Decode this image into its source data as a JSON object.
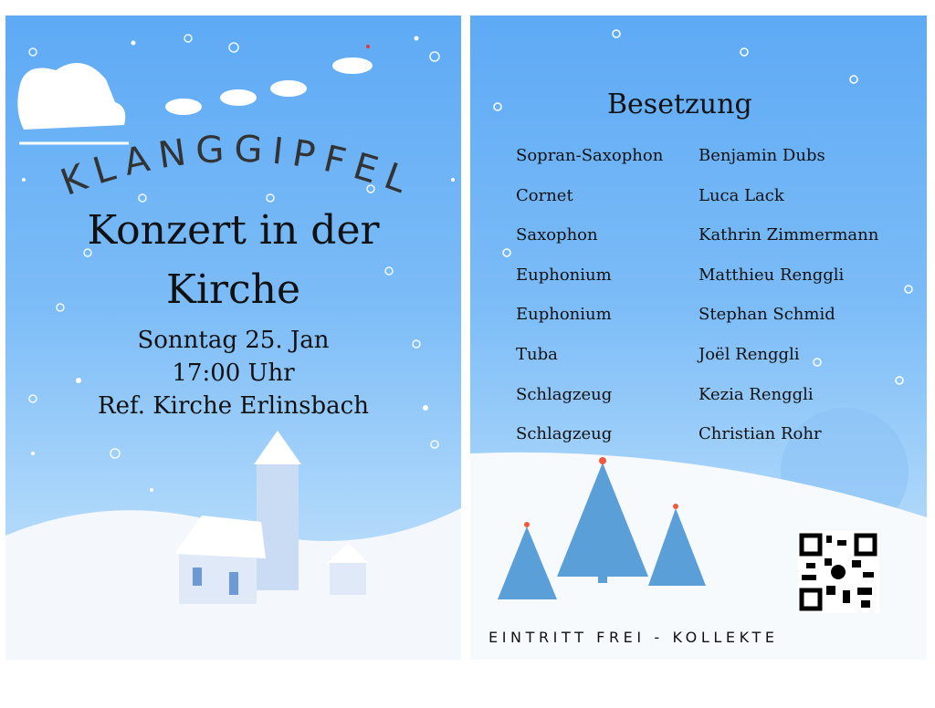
{
  "left": {
    "band_name": "KLANGGIPFEL",
    "title_line1": "Konzert in der",
    "title_line2": "Kirche",
    "date": "Sonntag 25. Jan",
    "time": "17:00 Uhr",
    "location": "Ref. Kirche Erlinsbach"
  },
  "right": {
    "heading": "Besetzung",
    "roster": [
      {
        "instrument": "Sopran-Saxophon",
        "name": "Benjamin Dubs"
      },
      {
        "instrument": "Cornet",
        "name": "Luca Lack"
      },
      {
        "instrument": "Saxophon",
        "name": "Kathrin Zimmermann"
      },
      {
        "instrument": "Euphonium",
        "name": "Matthieu Renggli"
      },
      {
        "instrument": "Euphonium",
        "name": "Stephan Schmid"
      },
      {
        "instrument": "Tuba",
        "name": "Joël Renggli"
      },
      {
        "instrument": "Schlagzeug",
        "name": "Kezia Renggli"
      },
      {
        "instrument": "Schlagzeug",
        "name": "Christian Rohr"
      }
    ],
    "footer": "EINTRITT FREI - KOLLEKTE"
  },
  "colors": {
    "sky": "#5eaaf5",
    "snow": "#ffffff",
    "tree": "#5b9fd8",
    "ornament": "#f05a3c"
  }
}
